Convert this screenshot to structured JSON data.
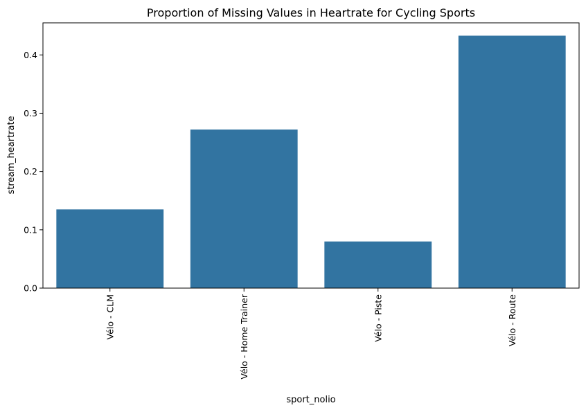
{
  "chart_data": {
    "type": "bar",
    "title": "Proportion of Missing Values in Heartrate for Cycling Sports",
    "xlabel": "sport_nolio",
    "ylabel": "stream_heartrate",
    "categories": [
      "Vélo - CLM",
      "Vélo - Home Trainer",
      "Vélo - Piste",
      "Vélo - Route"
    ],
    "values": [
      0.135,
      0.272,
      0.08,
      0.433
    ],
    "ylim": [
      0,
      0.455
    ],
    "yticks": [
      0.0,
      0.1,
      0.2,
      0.3,
      0.4
    ],
    "ytick_labels": [
      "0.0",
      "0.1",
      "0.2",
      "0.3",
      "0.4"
    ],
    "grid": false,
    "bar_color": "#3274a1"
  }
}
